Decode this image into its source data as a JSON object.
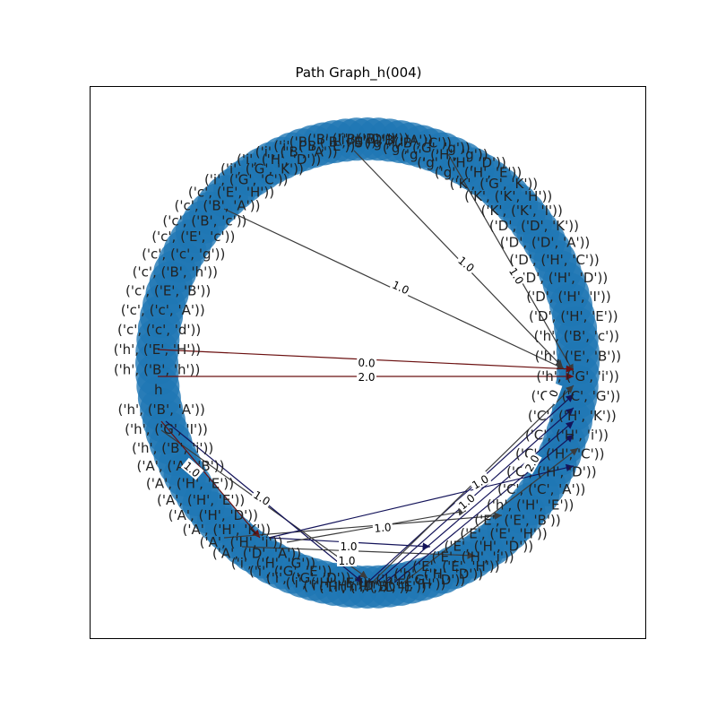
{
  "title": "Path Graph_h(004)",
  "colors": {
    "node": "#1f77b4",
    "edge_dark": "#3b3b3b",
    "edge_navy": "#14145a",
    "edge_red": "#6b1010",
    "frame": "#000000"
  },
  "node_labels": [
    "('h', ('B', 'c'))",
    "('h', ('E', 'B'))",
    "('h', ('G', 'i'))",
    "('C', ('C', 'G'))",
    "('C', ('H', 'K'))",
    "('C', ('H', 'i'))",
    "('C', ('H', 'C'))",
    "('C', ('H', 'D'))",
    "('C', ('C', 'A'))",
    "('h', ('H', 'E'))",
    "('E', ('E', 'B'))",
    "('E', ('E', 'H'))",
    "('E', ('H', 'D'))",
    "('E', ('H', 'i'))",
    "('E', ('E', 'H'))",
    "('h', ('H', 'D'))",
    "('h', ('G', 'D'))",
    "('h', ('E', 'H'))",
    "('h', ('B', 'E'))",
    "('H', ('H', 'D'))",
    "('i', ('H', 'D'))",
    "('i', ('H', 'E'))",
    "('i', ('G', 'D'))",
    "('i', ('G', 'E'))",
    "('i', ('H', 'G'))",
    "('A', ('D', 'A'))",
    "('A', ('H', 'i'))",
    "('A', ('H', 'K'))",
    "('A', ('H', 'D'))",
    "('A', ('H', 'E'))",
    "('A', ('H', 'E'))",
    "('A', ('A', 'B'))",
    "('h', ('B', 'i'))",
    "('h', ('G', 'I'))",
    "('h', ('B', 'A'))",
    "h",
    "('h', ('B', 'h'))",
    "('h', ('E', 'H'))",
    "('c', ('c', 'd'))",
    "('c', ('c', 'A'))",
    "('c', ('E', 'B'))",
    "('c', ('B', 'h'))",
    "('c', ('c', 'g'))",
    "('c', ('E', 'c'))",
    "('c', ('B', 'c'))",
    "('c', ('B', 'A'))",
    "('c', ('E', 'H'))",
    "('i', ('G', 'C'))",
    "('i', ('G', 'K'))",
    "('i', ('H', 'D'))",
    "('i', ('B', 'A'))",
    "('i', ('B', 'E'))",
    "('B', ('B', 'E'))",
    "('B', ('B', 'D'))",
    "('i', ('B', 'i'))",
    "('g', ('B', 'A'))",
    "('g', ('B', 'C'))",
    "('g', ('G', 'g'))",
    "('g', ('H', 'g'))",
    "('g', ('H', 'D'))",
    "('g', ('H', 'E'))",
    "('K', ('G', 'K'))",
    "('K', ('K', 'H'))",
    "('K', ('K', 'I'))",
    "('D', ('D', 'K'))",
    "('D', ('D', 'A'))",
    "('D', ('H', 'C'))",
    "('D', ('H', 'D'))",
    "('D', ('H', 'I'))",
    "('D', ('H', 'E'))"
  ],
  "edge_labels": [
    "1.0",
    "1.0",
    "1.0",
    "0.0",
    "2.0",
    "1.0",
    "1.0",
    "1.0",
    "1.0",
    "1.0",
    "1.0",
    "1.0",
    "0",
    "2.0",
    "0"
  ]
}
